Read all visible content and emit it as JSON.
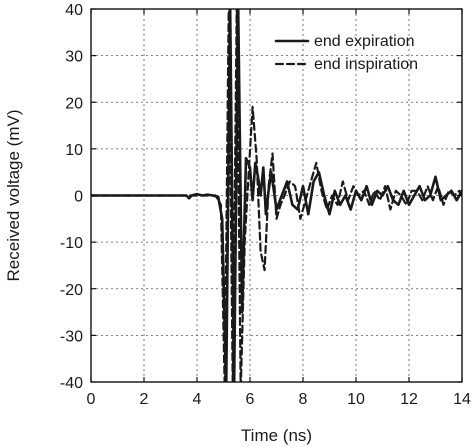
{
  "chart_data": {
    "type": "line",
    "title": "",
    "xlabel": "Time (ns)",
    "ylabel": "Received voltage (mV)",
    "xlim": [
      0,
      14
    ],
    "ylim": [
      -40,
      40
    ],
    "xticks": [
      0,
      2,
      4,
      6,
      8,
      10,
      12,
      14
    ],
    "yticks": [
      -40,
      -30,
      -20,
      -10,
      0,
      10,
      20,
      30,
      40
    ],
    "grid": true,
    "legend_position": "top-right",
    "series": [
      {
        "name": "end expiration",
        "style": "solid",
        "color": "#1a1a1a",
        "x": [
          0,
          1,
          2,
          3,
          3.6,
          3.7,
          3.8,
          4.0,
          4.2,
          4.4,
          4.6,
          4.8,
          4.95,
          5.1,
          5.25,
          5.4,
          5.55,
          5.7,
          5.85,
          6.0,
          6.1,
          6.2,
          6.3,
          6.4,
          6.5,
          6.6,
          6.7,
          6.8,
          7.0,
          7.2,
          7.4,
          7.6,
          7.8,
          8.0,
          8.2,
          8.4,
          8.6,
          8.8,
          9.0,
          9.2,
          9.4,
          9.6,
          9.8,
          10.0,
          10.2,
          10.4,
          10.6,
          10.8,
          11.0,
          11.2,
          11.4,
          11.6,
          11.8,
          12.0,
          12.2,
          12.4,
          12.6,
          12.8,
          13.0,
          13.2,
          13.4,
          13.6,
          13.8,
          14.0
        ],
        "y": [
          0,
          0,
          0,
          0,
          0,
          -0.6,
          0,
          0.3,
          0,
          0.2,
          0,
          -0.3,
          -5,
          -42,
          42,
          -42,
          42,
          -25,
          8,
          6,
          -1,
          7,
          4,
          0,
          6,
          -4,
          1,
          5,
          -3,
          0,
          3,
          -2,
          -3,
          2,
          -4,
          3,
          5,
          0,
          -4,
          1,
          -2,
          0,
          -3,
          1,
          -1,
          2,
          -2,
          1,
          0,
          2,
          -1,
          -2,
          1,
          -2,
          0,
          2,
          -1,
          0,
          4,
          -1,
          0,
          1,
          -1,
          1
        ]
      },
      {
        "name": "end inspiration",
        "style": "dashed",
        "color": "#1a1a1a",
        "x": [
          0,
          1,
          2,
          3,
          4.0,
          4.4,
          4.7,
          4.9,
          5.05,
          5.2,
          5.35,
          5.5,
          5.65,
          5.8,
          5.95,
          6.1,
          6.25,
          6.4,
          6.55,
          6.7,
          6.85,
          7.0,
          7.15,
          7.3,
          7.5,
          7.7,
          7.9,
          8.1,
          8.3,
          8.5,
          8.7,
          8.9,
          9.1,
          9.3,
          9.5,
          9.7,
          9.9,
          10.1,
          10.3,
          10.5,
          10.7,
          10.9,
          11.1,
          11.3,
          11.5,
          11.7,
          11.9,
          12.1,
          12.3,
          12.5,
          12.7,
          12.9,
          13.1,
          13.3,
          13.5,
          13.7,
          13.9,
          14.0
        ],
        "y": [
          0,
          0,
          0,
          0,
          0,
          0,
          0,
          -2,
          -42,
          42,
          -42,
          42,
          -42,
          -10,
          5,
          19,
          8,
          -12,
          -16,
          2,
          9,
          -5,
          -2,
          0,
          3,
          2,
          -5,
          -1,
          3,
          7,
          1,
          -3,
          0,
          -2,
          3,
          -1,
          2,
          0,
          1,
          -2,
          1,
          -1,
          2,
          -3,
          1,
          0,
          -2,
          1,
          1,
          -1,
          2,
          -1,
          2,
          -2,
          1,
          0,
          1,
          0
        ]
      }
    ]
  }
}
